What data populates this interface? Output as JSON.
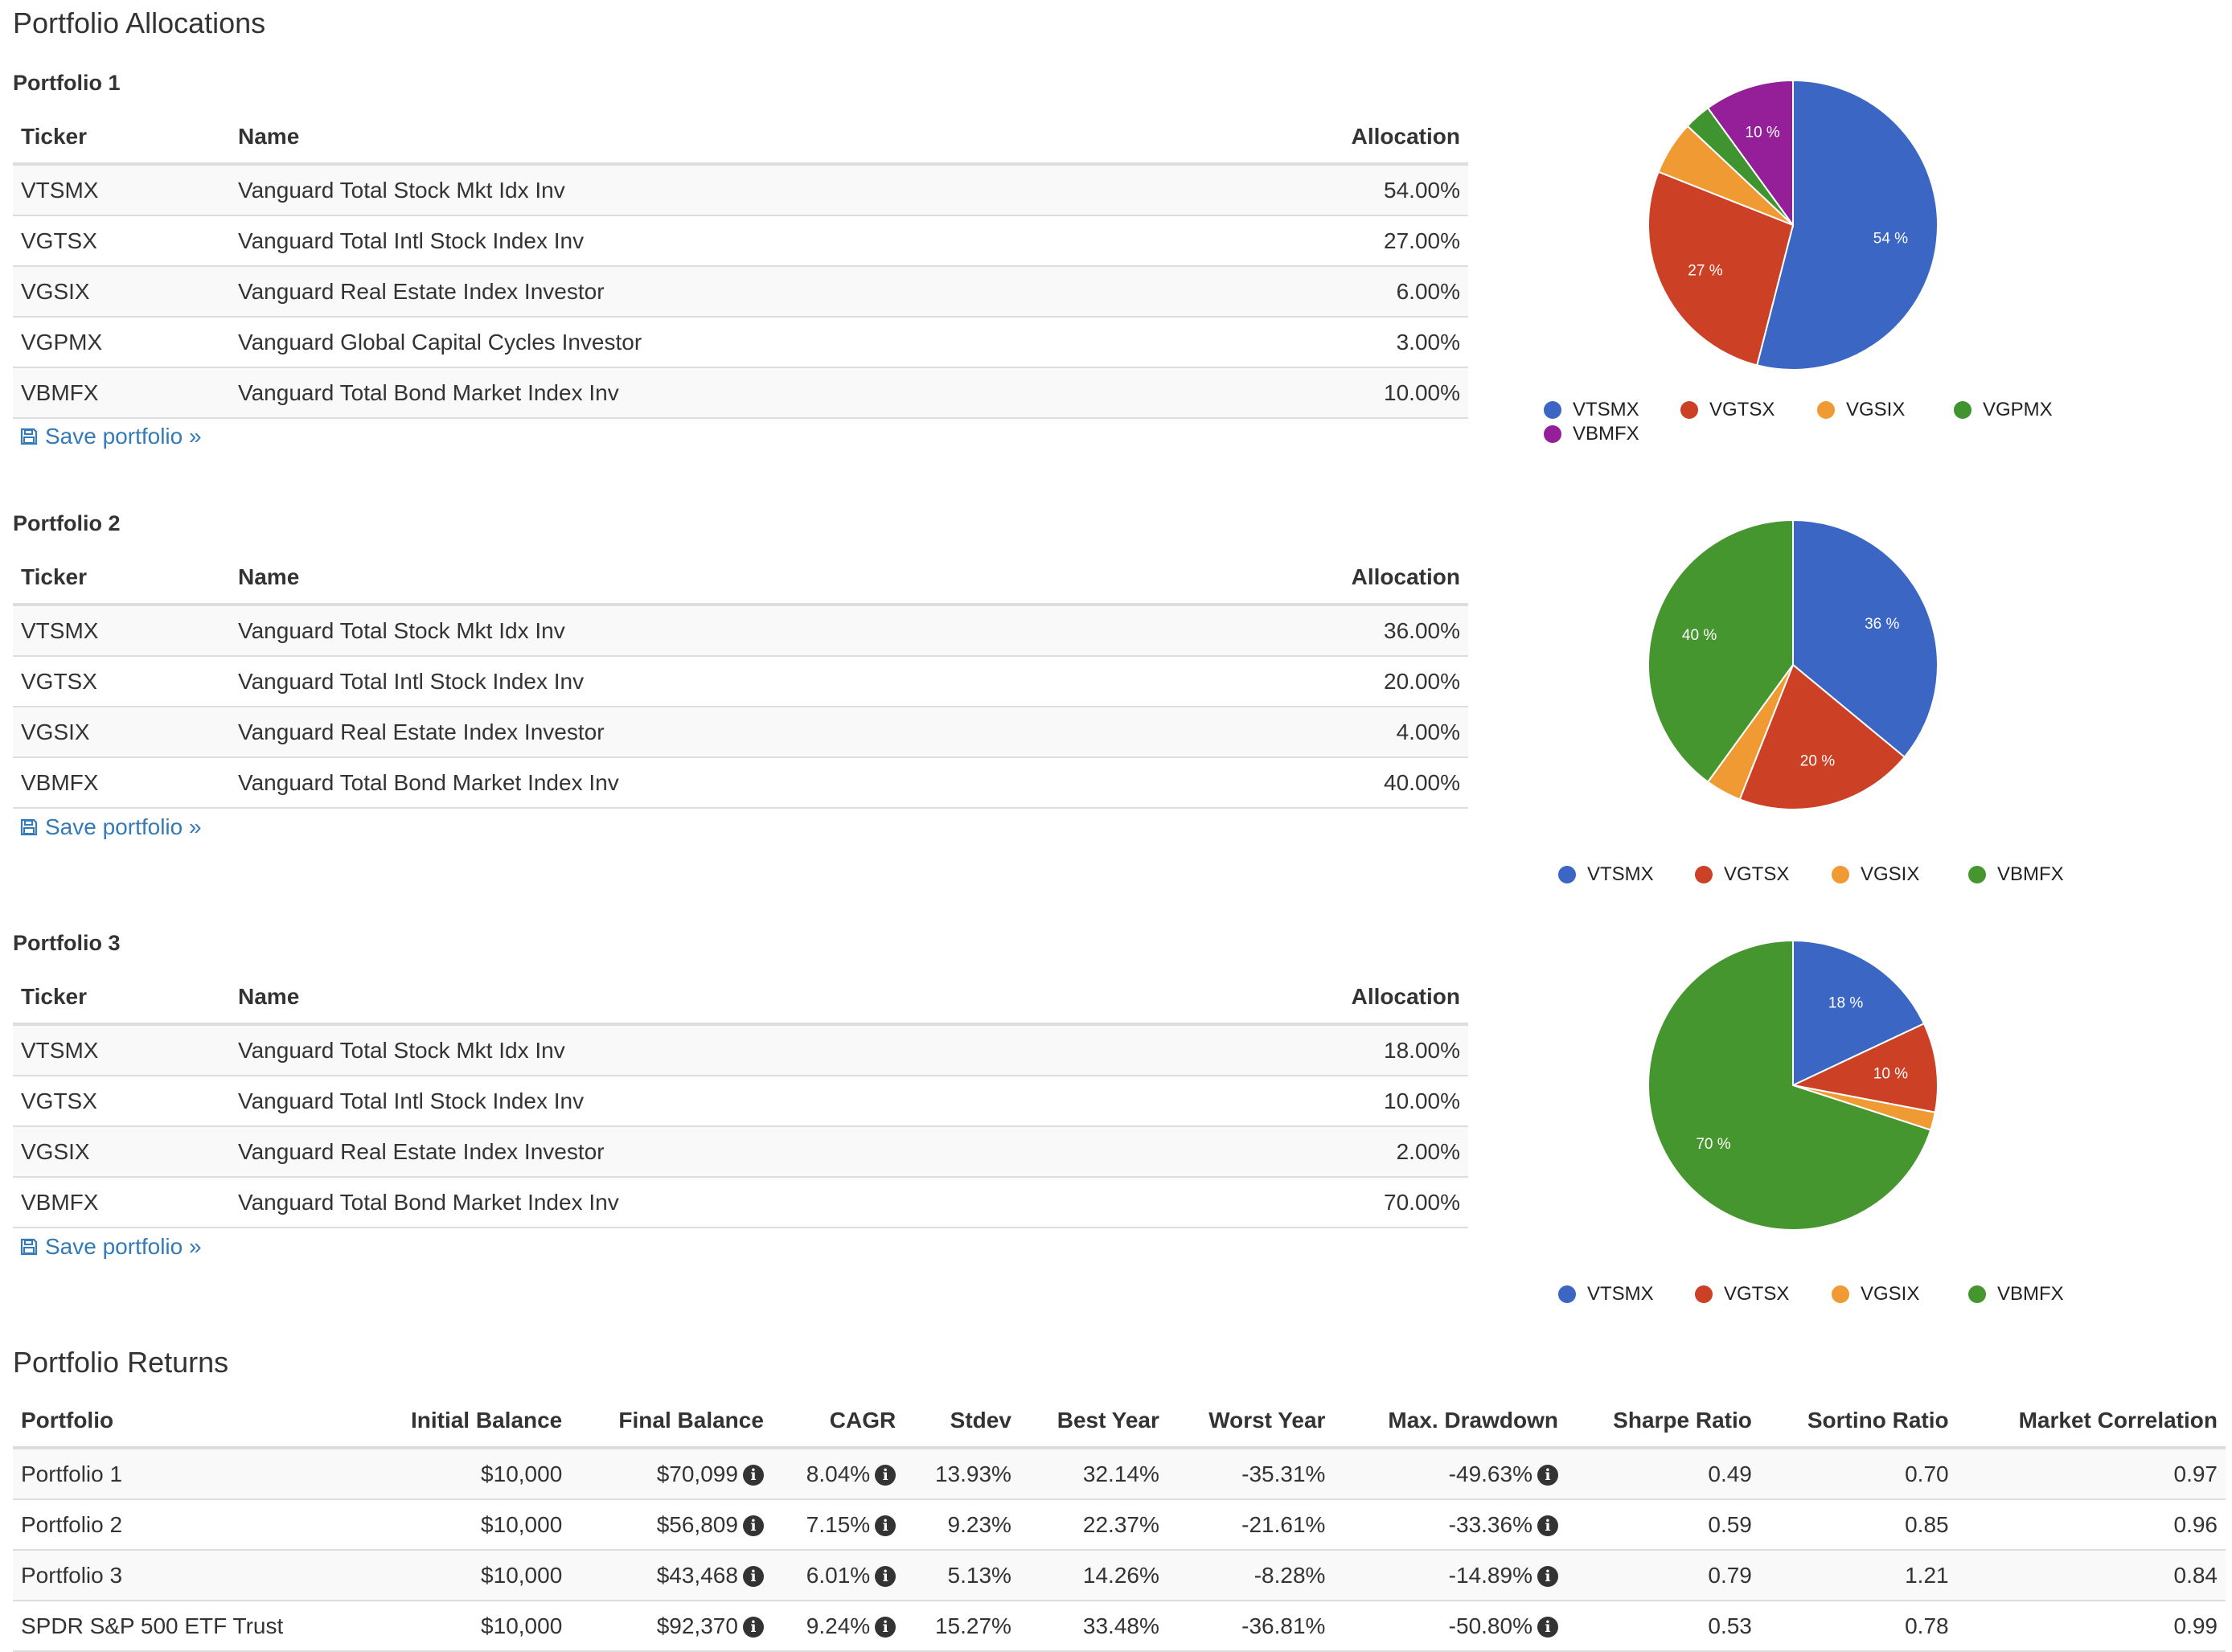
{
  "page": {
    "title": "Portfolio Allocations",
    "returns_title": "Portfolio Returns"
  },
  "colors": {
    "VTSMX": "#3b66c4",
    "VGTSX": "#cc4125",
    "VGSIX": "#f09a34",
    "VGPMX": "#3f9430",
    "VBMFX": "#951f99",
    "VBMFX_green": "#46962f",
    "link": "#337ab7"
  },
  "alloc_headers": {
    "ticker": "Ticker",
    "name": "Name",
    "allocation": "Allocation"
  },
  "save_label": "Save portfolio »",
  "portfolios": [
    {
      "title": "Portfolio 1",
      "rows": [
        {
          "ticker": "VTSMX",
          "name": "Vanguard Total Stock Mkt Idx Inv",
          "allocation": "54.00%"
        },
        {
          "ticker": "VGTSX",
          "name": "Vanguard Total Intl Stock Index Inv",
          "allocation": "27.00%"
        },
        {
          "ticker": "VGSIX",
          "name": "Vanguard Real Estate Index Investor",
          "allocation": "6.00%"
        },
        {
          "ticker": "VGPMX",
          "name": "Vanguard Global Capital Cycles Investor",
          "allocation": "3.00%"
        },
        {
          "ticker": "VBMFX",
          "name": "Vanguard Total Bond Market Index Inv",
          "allocation": "10.00%"
        }
      ]
    },
    {
      "title": "Portfolio 2",
      "rows": [
        {
          "ticker": "VTSMX",
          "name": "Vanguard Total Stock Mkt Idx Inv",
          "allocation": "36.00%"
        },
        {
          "ticker": "VGTSX",
          "name": "Vanguard Total Intl Stock Index Inv",
          "allocation": "20.00%"
        },
        {
          "ticker": "VGSIX",
          "name": "Vanguard Real Estate Index Investor",
          "allocation": "4.00%"
        },
        {
          "ticker": "VBMFX",
          "name": "Vanguard Total Bond Market Index Inv",
          "allocation": "40.00%"
        }
      ]
    },
    {
      "title": "Portfolio 3",
      "rows": [
        {
          "ticker": "VTSMX",
          "name": "Vanguard Total Stock Mkt Idx Inv",
          "allocation": "18.00%"
        },
        {
          "ticker": "VGTSX",
          "name": "Vanguard Total Intl Stock Index Inv",
          "allocation": "10.00%"
        },
        {
          "ticker": "VGSIX",
          "name": "Vanguard Real Estate Index Investor",
          "allocation": "2.00%"
        },
        {
          "ticker": "VBMFX",
          "name": "Vanguard Total Bond Market Index Inv",
          "allocation": "70.00%"
        }
      ]
    }
  ],
  "chart_data": [
    {
      "type": "pie",
      "title": "Portfolio 1",
      "slices": [
        {
          "label": "VTSMX",
          "value": 54,
          "color": "#3b66c4",
          "data_label": "54 %"
        },
        {
          "label": "VGTSX",
          "value": 27,
          "color": "#cc4125",
          "data_label": "27 %"
        },
        {
          "label": "VGSIX",
          "value": 6,
          "color": "#f09a34",
          "data_label": ""
        },
        {
          "label": "VGPMX",
          "value": 3,
          "color": "#3f9430",
          "data_label": ""
        },
        {
          "label": "VBMFX",
          "value": 10,
          "color": "#951f99",
          "data_label": "10 %"
        }
      ],
      "legend": [
        "VTSMX",
        "VGTSX",
        "VGSIX",
        "VGPMX",
        "VBMFX"
      ],
      "legend_position": "bottom"
    },
    {
      "type": "pie",
      "title": "Portfolio 2",
      "slices": [
        {
          "label": "VTSMX",
          "value": 36,
          "color": "#3b66c4",
          "data_label": "36 %"
        },
        {
          "label": "VGTSX",
          "value": 20,
          "color": "#cc4125",
          "data_label": "20 %"
        },
        {
          "label": "VGSIX",
          "value": 4,
          "color": "#f09a34",
          "data_label": ""
        },
        {
          "label": "VBMFX",
          "value": 40,
          "color": "#46962f",
          "data_label": "40 %"
        }
      ],
      "legend": [
        "VTSMX",
        "VGTSX",
        "VGSIX",
        "VBMFX"
      ],
      "legend_position": "bottom"
    },
    {
      "type": "pie",
      "title": "Portfolio 3",
      "slices": [
        {
          "label": "VTSMX",
          "value": 18,
          "color": "#3b66c4",
          "data_label": "18 %"
        },
        {
          "label": "VGTSX",
          "value": 10,
          "color": "#cc4125",
          "data_label": "10 %"
        },
        {
          "label": "VGSIX",
          "value": 2,
          "color": "#f09a34",
          "data_label": ""
        },
        {
          "label": "VBMFX",
          "value": 70,
          "color": "#46962f",
          "data_label": "70 %"
        }
      ],
      "legend": [
        "VTSMX",
        "VGTSX",
        "VGSIX",
        "VBMFX"
      ],
      "legend_position": "bottom"
    }
  ],
  "returns": {
    "headers": [
      "Portfolio",
      "Initial Balance",
      "Final Balance",
      "CAGR",
      "Stdev",
      "Best Year",
      "Worst Year",
      "Max. Drawdown",
      "Sharpe Ratio",
      "Sortino Ratio",
      "Market Correlation"
    ],
    "info_glyph": "i",
    "rows": [
      {
        "portfolio": "Portfolio 1",
        "initial": "$10,000",
        "final": "$70,099",
        "cagr": "8.04%",
        "stdev": "13.93%",
        "best": "32.14%",
        "worst": "-35.31%",
        "drawdown": "-49.63%",
        "sharpe": "0.49",
        "sortino": "0.70",
        "corr": "0.97"
      },
      {
        "portfolio": "Portfolio 2",
        "initial": "$10,000",
        "final": "$56,809",
        "cagr": "7.15%",
        "stdev": "9.23%",
        "best": "22.37%",
        "worst": "-21.61%",
        "drawdown": "-33.36%",
        "sharpe": "0.59",
        "sortino": "0.85",
        "corr": "0.96"
      },
      {
        "portfolio": "Portfolio 3",
        "initial": "$10,000",
        "final": "$43,468",
        "cagr": "6.01%",
        "stdev": "5.13%",
        "best": "14.26%",
        "worst": "-8.28%",
        "drawdown": "-14.89%",
        "sharpe": "0.79",
        "sortino": "1.21",
        "corr": "0.84"
      },
      {
        "portfolio": "SPDR S&P 500 ETF Trust",
        "initial": "$10,000",
        "final": "$92,370",
        "cagr": "9.24%",
        "stdev": "15.27%",
        "best": "33.48%",
        "worst": "-36.81%",
        "drawdown": "-50.80%",
        "sharpe": "0.53",
        "sortino": "0.78",
        "corr": "0.99"
      }
    ]
  }
}
